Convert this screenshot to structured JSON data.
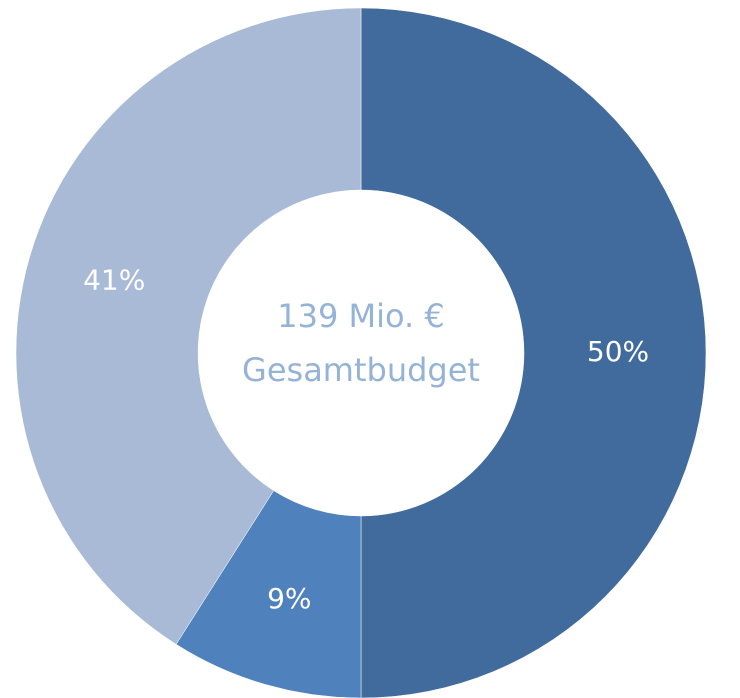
{
  "chart_data": {
    "type": "donut",
    "values": [
      50,
      9,
      41
    ],
    "value_labels": [
      "50%",
      "9%",
      "41%"
    ],
    "colors": [
      "#416b9c",
      "#4f81bd",
      "#a9bad7"
    ],
    "center_text": [
      "139 Mio. €",
      "Gesamtbudget"
    ]
  }
}
